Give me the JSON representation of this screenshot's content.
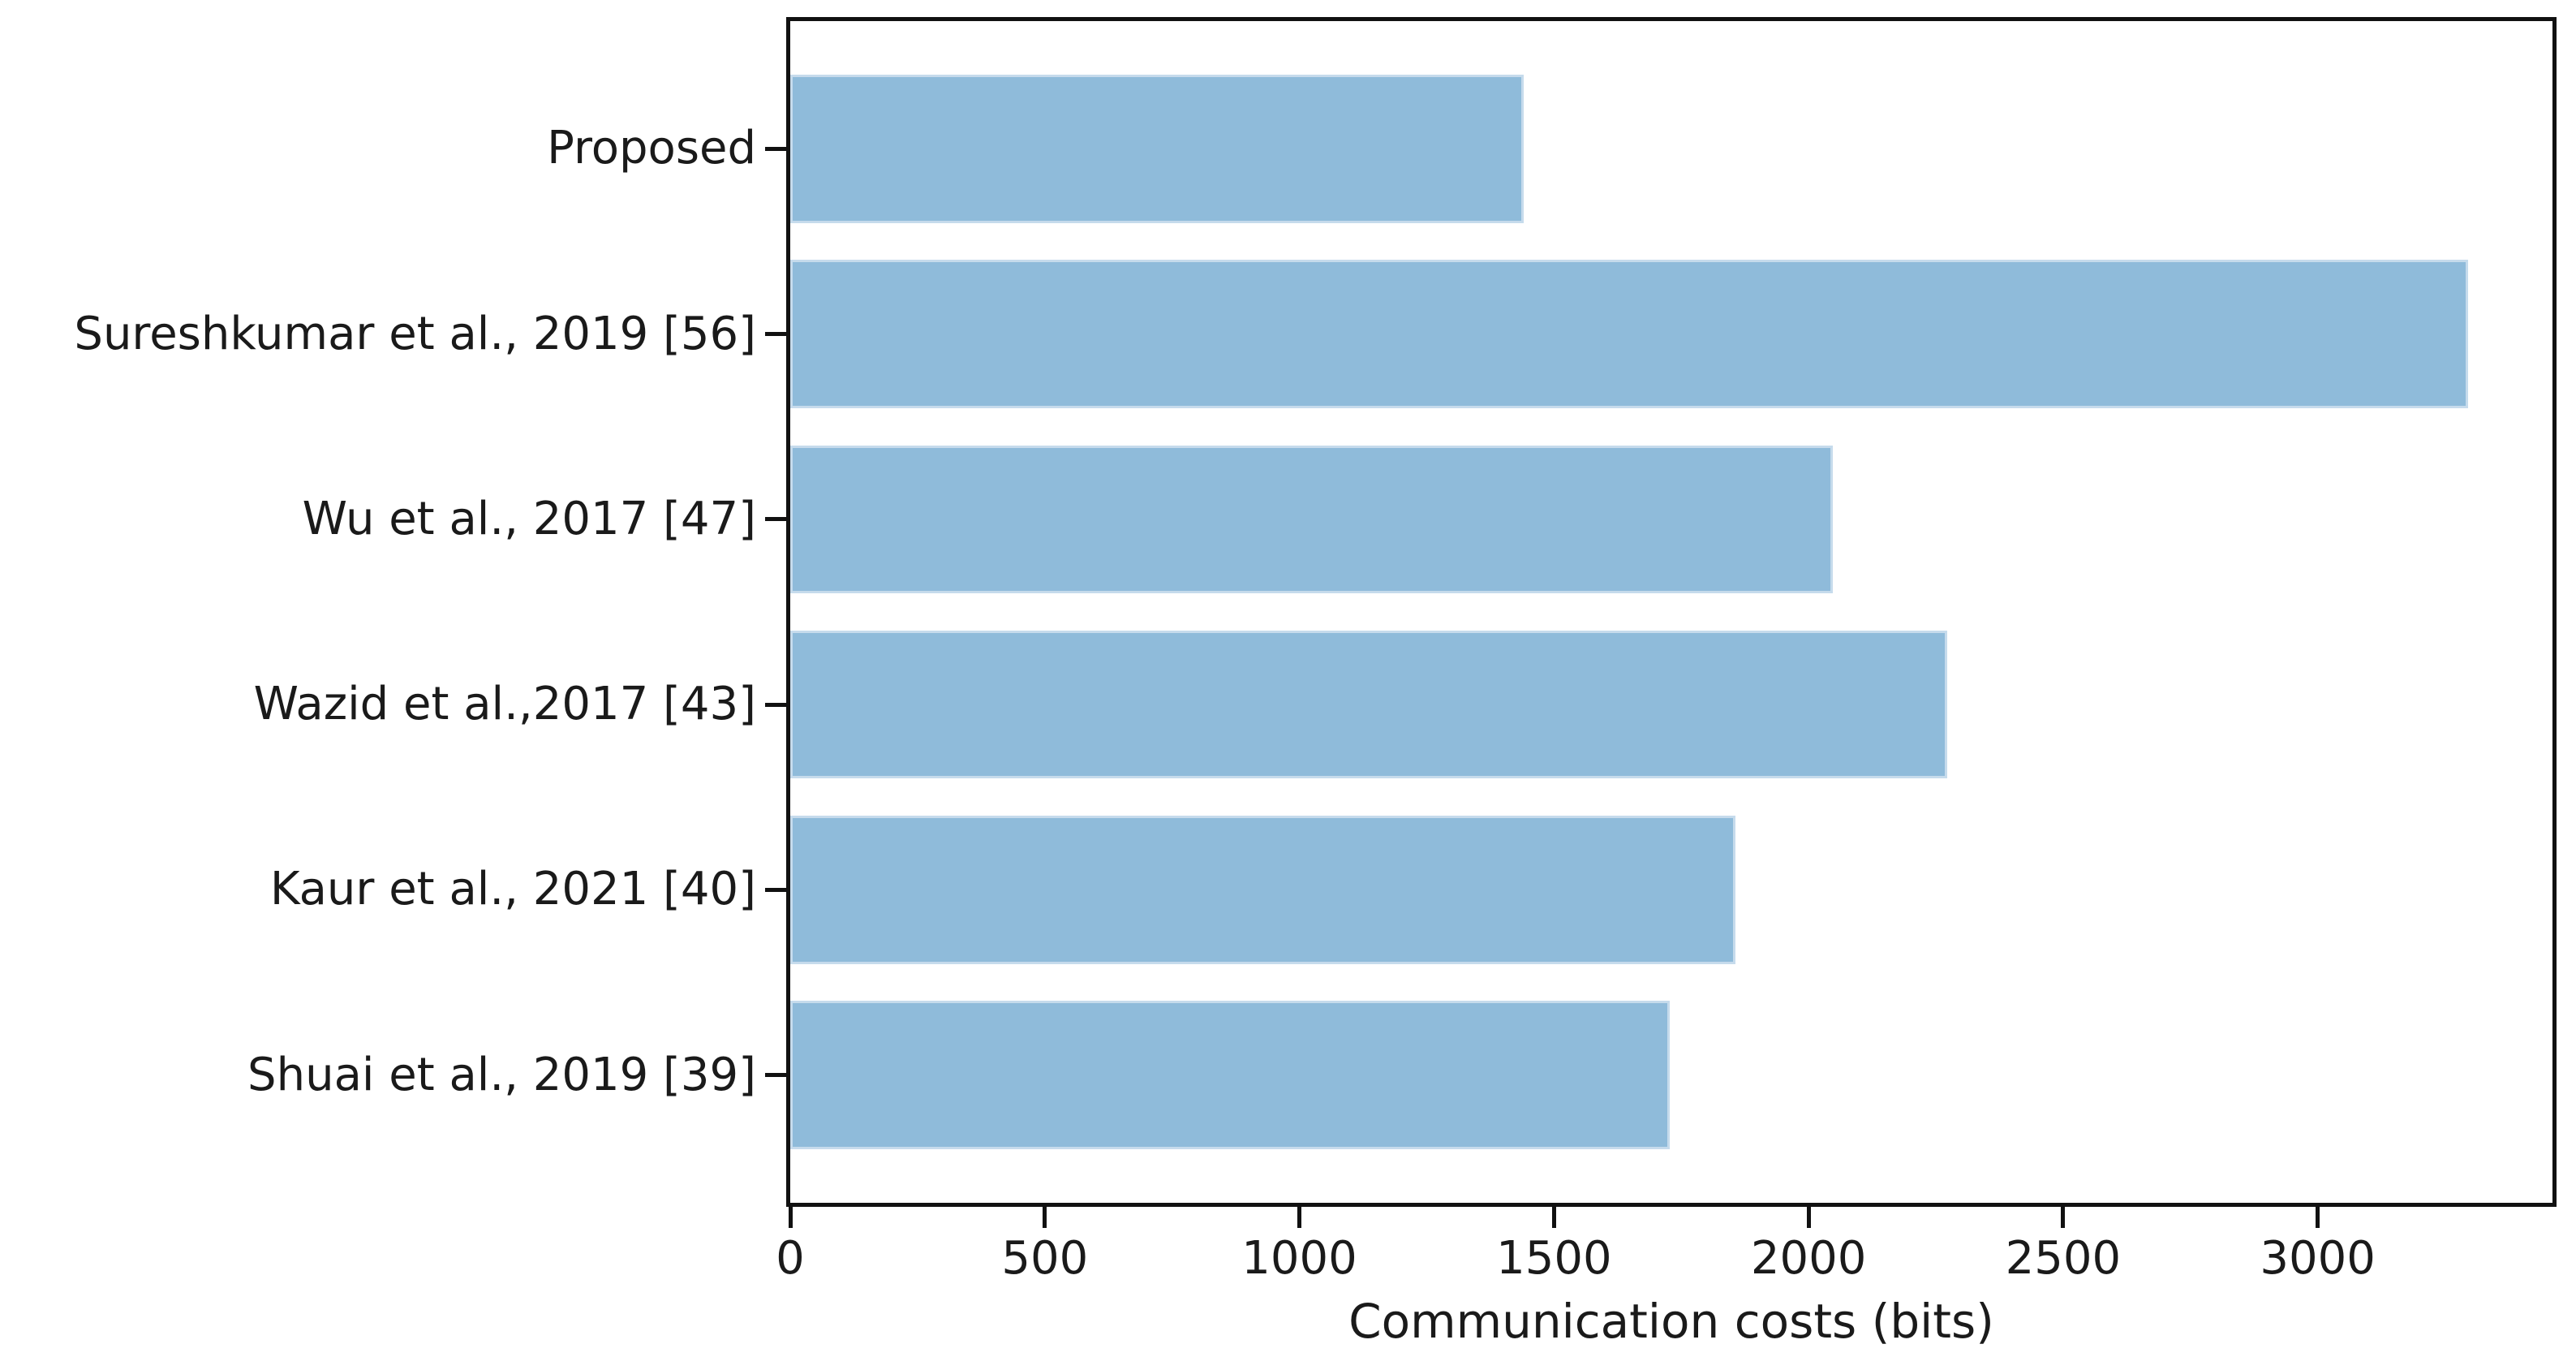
{
  "chart_data": {
    "type": "bar",
    "orientation": "horizontal",
    "title": "",
    "xlabel": "Communication costs (bits)",
    "ylabel": "",
    "categories": [
      "Proposed",
      "Sureshkumar et al., 2019 [56]",
      "Wu et al., 2017 [47]",
      "Wazid et al.,2017 [43]",
      "Kaur et al., 2021 [40]",
      "Shuai et al., 2019 [39]"
    ],
    "values": [
      1440,
      3296,
      2048,
      2272,
      1856,
      1728
    ],
    "xticks": [
      0,
      500,
      1000,
      1500,
      2000,
      2500,
      3000
    ],
    "xlim": [
      0,
      3461
    ],
    "grid": false,
    "legend": null,
    "bar_color": "#8fbbda",
    "bar_edge_color": "#c6dbec",
    "axis_color": "#111111",
    "text_color": "#1a1a1a"
  }
}
